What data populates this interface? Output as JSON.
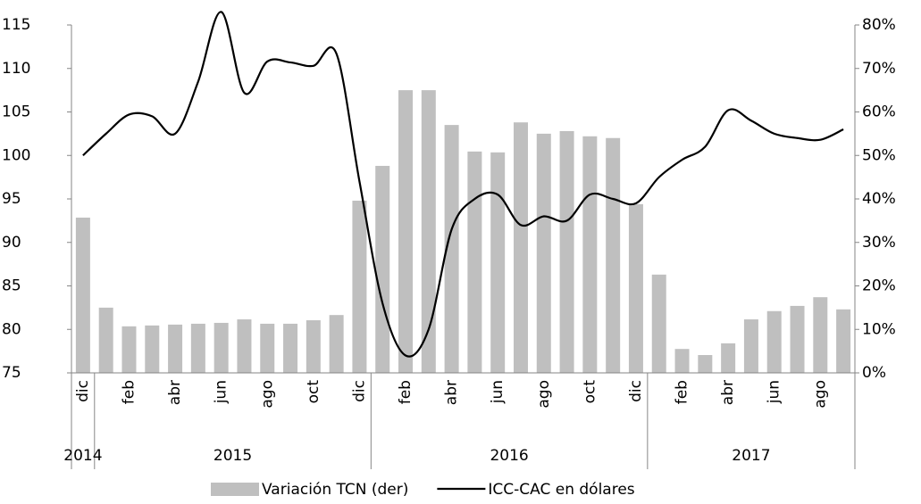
{
  "chart_data": {
    "type": "bar-line",
    "categories": [
      "dic",
      null,
      "feb",
      null,
      "abr",
      null,
      "jun",
      null,
      "ago",
      null,
      "oct",
      null,
      "dic",
      null,
      "feb",
      null,
      "abr",
      null,
      "jun",
      null,
      "ago",
      null,
      "oct",
      null,
      "dic",
      null,
      "feb",
      null,
      "abr",
      null,
      "jun",
      null,
      "ago",
      null
    ],
    "years": [
      "2014",
      "2015",
      "2016",
      "2017"
    ],
    "series": [
      {
        "name": "Variación TCN (der)",
        "type": "bar",
        "axis": "y2",
        "color": "#bfbfbf",
        "values": [
          35.7,
          15,
          10.7,
          10.9,
          11.1,
          11.3,
          11.5,
          12.3,
          11.3,
          11.3,
          12.1,
          13.3,
          39.6,
          47.6,
          65,
          65,
          57,
          50.9,
          50.7,
          57.6,
          55,
          55.6,
          54.4,
          54,
          38.8,
          22.6,
          5.5,
          4.1,
          6.8,
          12.3,
          14.2,
          15.4,
          17.4,
          14.6
        ]
      },
      {
        "name": "ICC-CAC en dólares",
        "type": "line",
        "color": "#000000",
        "values": [
          100,
          102.5,
          104.7,
          104.5,
          102.5,
          108.5,
          116.5,
          107.2,
          110.8,
          110.7,
          110.3,
          111.7,
          97,
          83,
          77,
          80,
          91.5,
          95,
          95.5,
          92,
          93,
          92.5,
          95.5,
          95,
          94.5,
          97.5,
          99.5,
          101,
          105.2,
          104,
          102.5,
          102,
          101.8,
          103
        ]
      }
    ],
    "ylim": [
      75,
      115
    ],
    "yticks": [
      75,
      80,
      85,
      90,
      95,
      100,
      105,
      110,
      115
    ],
    "y2lim": [
      0,
      80
    ],
    "y2ticks": [
      {
        "value": 0,
        "label": "0%"
      },
      {
        "value": 10,
        "label": "10%"
      },
      {
        "value": 20,
        "label": "20%"
      },
      {
        "value": 30,
        "label": "30%"
      },
      {
        "value": 40,
        "label": "40%"
      },
      {
        "value": 50,
        "label": "50%"
      },
      {
        "value": 60,
        "label": "60%"
      },
      {
        "value": 70,
        "label": "70%"
      },
      {
        "value": 80,
        "label": "80%"
      }
    ],
    "grid": false,
    "legend": "bottom"
  }
}
